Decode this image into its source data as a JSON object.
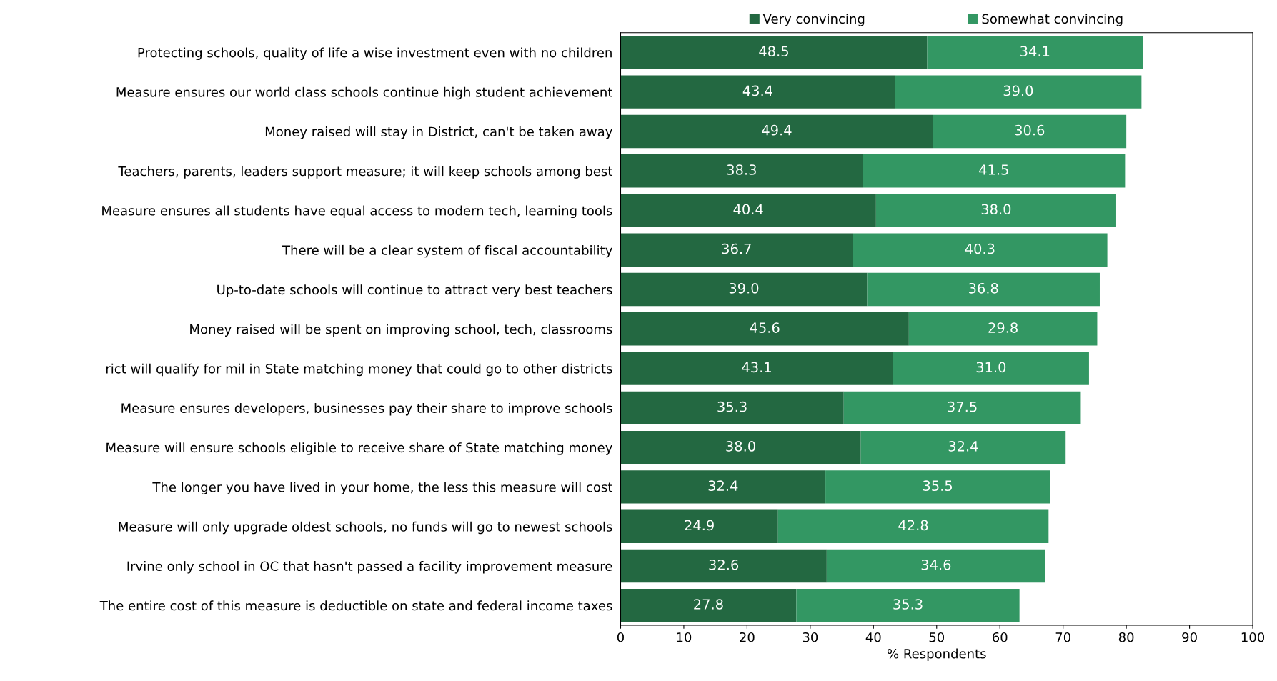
{
  "chart_data": {
    "type": "bar",
    "orientation": "horizontal",
    "stacked": true,
    "xlabel": "% Respondents",
    "categories": [
      "Protecting schools, quality of life a wise investment even with no children",
      "Measure ensures our world class schools continue high student achievement",
      "Money raised will stay in District, can't be taken away",
      "Teachers, parents, leaders support measure; it will keep schools among best",
      "Measure ensures all students have equal access to modern tech, learning tools",
      "There will be a clear system of fiscal accountability",
      "Up-to-date schools will continue to attract very best teachers",
      "Money raised will be spent on improving school, tech, classrooms",
      "rict will qualify for mil in State matching money that could go to other districts",
      "Measure ensures developers, businesses pay their share to improve schools",
      "Measure will ensure schools eligible to receive share of State matching money",
      "The longer you have lived in your home, the less this measure will cost",
      "Measure will only upgrade oldest schools, no funds will go to newest schools",
      "Irvine only school in OC that hasn't passed a facility improvement measure",
      "The entire cost of this measure is deductible on state and federal income taxes"
    ],
    "series": [
      {
        "name": "Very convincing",
        "color": "#236841",
        "values": [
          48.5,
          43.4,
          49.4,
          38.3,
          40.4,
          36.7,
          39.0,
          45.6,
          43.1,
          35.3,
          38.0,
          32.4,
          24.9,
          32.6,
          27.8
        ],
        "value_labels": [
          "48.5",
          "43.4",
          "49.4",
          "38.3",
          "40.4",
          "36.7",
          "39.0",
          "45.6",
          "43.1",
          "35.3",
          "38.0",
          "32.4",
          "24.9",
          "32.6",
          "27.8"
        ]
      },
      {
        "name": "Somewhat convincing",
        "color": "#339763",
        "values": [
          34.1,
          39.0,
          30.6,
          41.5,
          38.0,
          40.3,
          36.8,
          29.8,
          31.0,
          37.5,
          32.4,
          35.5,
          42.8,
          34.6,
          35.3
        ],
        "value_labels": [
          "34.1",
          "39.0",
          "30.6",
          "41.5",
          "38.0",
          "40.3",
          "36.8",
          "29.8",
          "31.0",
          "37.5",
          "32.4",
          "35.5",
          "42.8",
          "34.6",
          "35.3"
        ]
      }
    ],
    "xlim": [
      0,
      100
    ],
    "xticks": [
      0,
      10,
      20,
      30,
      40,
      50,
      60,
      70,
      80,
      90,
      100
    ],
    "grid": false,
    "legend": "top"
  }
}
